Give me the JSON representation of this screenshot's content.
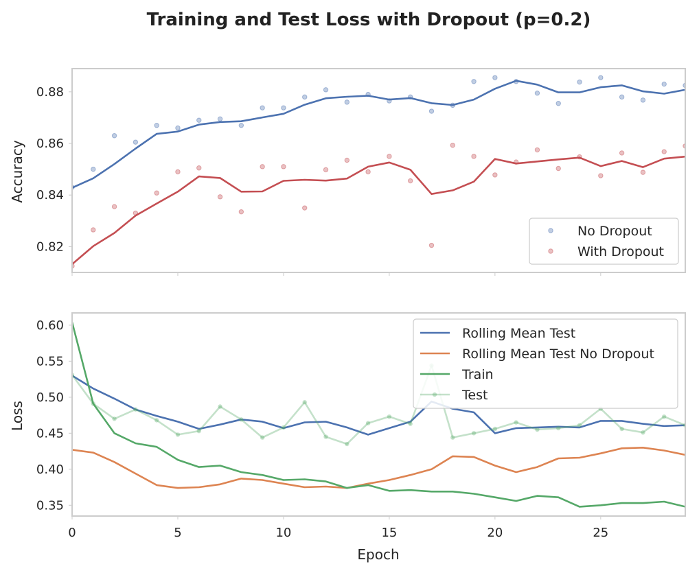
{
  "chart_data": {
    "title": "Training and Test Loss with Dropout (p=0.2)",
    "xlabel": "Epoch",
    "x": [
      0,
      1,
      2,
      3,
      4,
      5,
      6,
      7,
      8,
      9,
      10,
      11,
      12,
      13,
      14,
      15,
      16,
      17,
      18,
      19,
      20,
      21,
      22,
      23,
      24,
      25,
      26,
      27,
      28,
      29
    ],
    "xlim": [
      0,
      29
    ],
    "xticks": [
      0,
      5,
      10,
      15,
      20,
      25
    ],
    "subplots": [
      {
        "type": "scatter+line",
        "ylabel": "Accuracy",
        "ylim": [
          0.81,
          0.889
        ],
        "yticks": [
          "0.82",
          "0.84",
          "0.86",
          "0.88"
        ],
        "grid": false,
        "legend_position": "lower-right",
        "series": [
          {
            "name": "No Dropout",
            "kind": "points",
            "color": "#4c72b0",
            "values": [
              0.843,
              0.85,
              0.863,
              0.8605,
              0.867,
              0.866,
              0.869,
              0.8695,
              0.867,
              0.8738,
              0.8738,
              0.878,
              0.8808,
              0.876,
              0.879,
              0.8765,
              0.878,
              0.8725,
              0.8748,
              0.884,
              0.8855,
              0.884,
              0.8795,
              0.8755,
              0.8838,
              0.8855,
              0.878,
              0.8768,
              0.883,
              0.8825
            ]
          },
          {
            "kind": "line",
            "color": "#4c72b0",
            "values": [
              0.8428,
              0.8465,
              0.852,
              0.858,
              0.8637,
              0.8646,
              0.8673,
              0.8683,
              0.8686,
              0.8701,
              0.8715,
              0.875,
              0.8775,
              0.8781,
              0.8785,
              0.877,
              0.8776,
              0.8756,
              0.8749,
              0.877,
              0.8812,
              0.8843,
              0.8828,
              0.8798,
              0.8798,
              0.8818,
              0.8825,
              0.8802,
              0.8793,
              0.8808
            ]
          },
          {
            "name": "With Dropout",
            "kind": "points",
            "color": "#c44e52",
            "values": [
              0.8125,
              0.8265,
              0.8355,
              0.833,
              0.8408,
              0.849,
              0.8505,
              0.8393,
              0.8335,
              0.851,
              0.851,
              0.835,
              0.8498,
              0.8535,
              0.849,
              0.855,
              0.8455,
              0.8205,
              0.8593,
              0.855,
              0.8478,
              0.8528,
              0.8575,
              0.8503,
              0.8548,
              0.8475,
              0.8563,
              0.8488,
              0.8568,
              0.859
            ]
          },
          {
            "kind": "line",
            "color": "#c44e52",
            "values": [
              0.8132,
              0.8202,
              0.8253,
              0.832,
              0.8367,
              0.8413,
              0.8472,
              0.8466,
              0.8413,
              0.8414,
              0.8455,
              0.8459,
              0.8456,
              0.8464,
              0.851,
              0.8526,
              0.8498,
              0.8404,
              0.8418,
              0.8452,
              0.854,
              0.8522,
              0.853,
              0.8538,
              0.8545,
              0.8512,
              0.8532,
              0.8508,
              0.8541,
              0.8549
            ]
          }
        ]
      },
      {
        "type": "line",
        "ylabel": "Loss",
        "ylim": [
          0.335,
          0.617
        ],
        "yticks": [
          "0.35",
          "0.40",
          "0.45",
          "0.50",
          "0.55",
          "0.60"
        ],
        "grid": false,
        "legend_position": "upper-right",
        "series": [
          {
            "name": "Rolling Mean Test",
            "color": "#4c72b0",
            "values": [
              0.53,
              0.512,
              0.498,
              0.483,
              0.474,
              0.466,
              0.456,
              0.462,
              0.469,
              0.466,
              0.457,
              0.465,
              0.466,
              0.458,
              0.448,
              0.457,
              0.466,
              0.494,
              0.484,
              0.479,
              0.45,
              0.457,
              0.458,
              0.459,
              0.458,
              0.467,
              0.467,
              0.463,
              0.46,
              0.461
            ]
          },
          {
            "name": "Rolling Mean Test No Dropout",
            "color": "#dd8452",
            "values": [
              0.427,
              0.423,
              0.41,
              0.394,
              0.378,
              0.374,
              0.375,
              0.379,
              0.387,
              0.385,
              0.38,
              0.375,
              0.376,
              0.374,
              0.38,
              0.385,
              0.392,
              0.4,
              0.418,
              0.417,
              0.405,
              0.396,
              0.403,
              0.415,
              0.416,
              0.422,
              0.429,
              0.43,
              0.426,
              0.42
            ]
          },
          {
            "name": "Train",
            "color": "#55a868",
            "values": [
              0.604,
              0.491,
              0.45,
              0.436,
              0.431,
              0.413,
              0.403,
              0.405,
              0.396,
              0.392,
              0.385,
              0.386,
              0.383,
              0.374,
              0.378,
              0.37,
              0.371,
              0.369,
              0.369,
              0.366,
              0.361,
              0.356,
              0.363,
              0.361,
              0.348,
              0.35,
              0.353,
              0.353,
              0.355,
              0.348
            ]
          },
          {
            "name": "Test",
            "color": "#55a868",
            "alpha": 0.35,
            "markers": true,
            "values": [
              0.531,
              0.491,
              0.47,
              0.483,
              0.468,
              0.448,
              0.453,
              0.487,
              0.469,
              0.444,
              0.458,
              0.493,
              0.445,
              0.435,
              0.464,
              0.473,
              0.463,
              0.544,
              0.444,
              0.45,
              0.456,
              0.465,
              0.455,
              0.457,
              0.461,
              0.484,
              0.456,
              0.451,
              0.473,
              0.461
            ]
          }
        ]
      }
    ]
  }
}
